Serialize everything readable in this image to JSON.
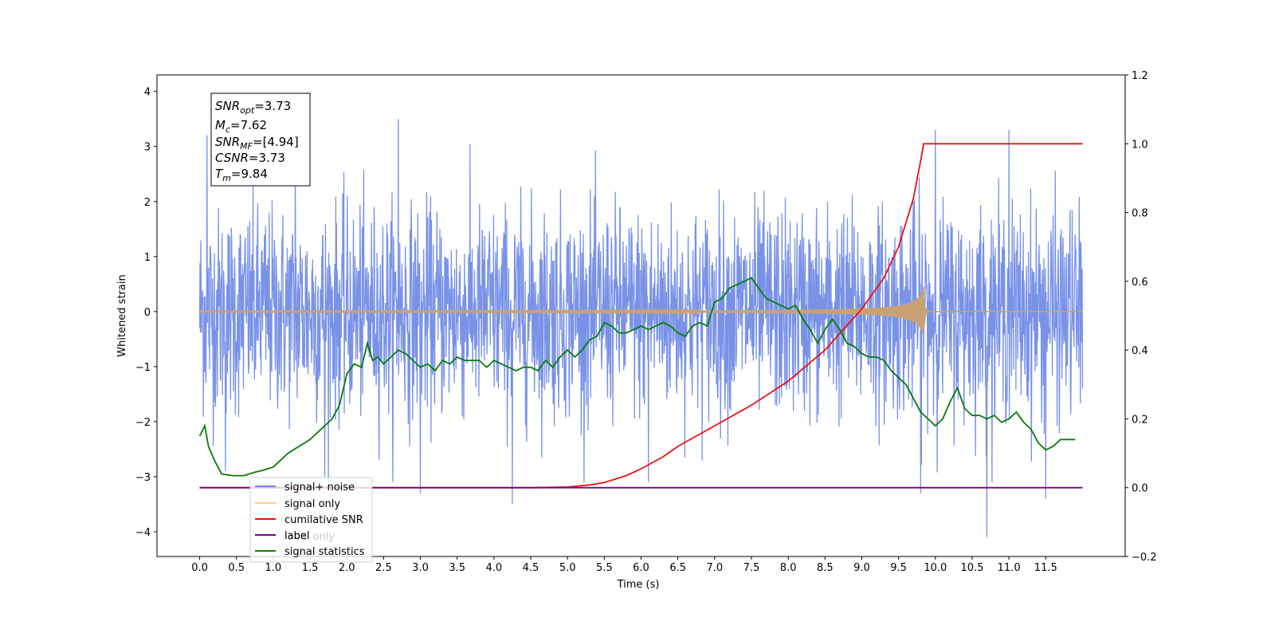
{
  "figure": {
    "info_box": {
      "lines": [
        {
          "name": "SNR",
          "sub": "opt",
          "value": "=3.73"
        },
        {
          "name": "M",
          "sub": "c",
          "value": "=7.62"
        },
        {
          "name": "SNR",
          "sub": "MF",
          "value": "=[4.94]"
        },
        {
          "name": "CSNR",
          "sub": "",
          "value": "=3.73"
        },
        {
          "name": "T",
          "sub": "m",
          "value": "=9.84"
        }
      ]
    }
  },
  "chart_data": {
    "type": "line",
    "title": "",
    "xlabel": "Time (s)",
    "ylabel": "Whitened strain",
    "y2label": "",
    "xlim": [
      -0.58,
      12.58
    ],
    "ylim": [
      -4.45,
      4.3
    ],
    "y2lim": [
      -0.2,
      1.2
    ],
    "x_ticks": [
      "0.0",
      "0.5",
      "1.0",
      "1.5",
      "2.0",
      "2.5",
      "3.0",
      "3.5",
      "4.0",
      "4.5",
      "5.0",
      "5.5",
      "6.0",
      "6.5",
      "7.0",
      "7.5",
      "8.0",
      "8.5",
      "9.0",
      "9.5",
      "10.0",
      "10.5",
      "11.0",
      "11.5"
    ],
    "y_ticks": [
      "−4",
      "−3",
      "−2",
      "−1",
      "0",
      "1",
      "2",
      "3",
      "4"
    ],
    "y2_ticks": [
      "−0.2",
      "0.0",
      "0.2",
      "0.4",
      "0.6",
      "0.8",
      "1.0",
      "1.2"
    ],
    "grid": false,
    "legend_position": "lower-left",
    "legend": [
      "signal+ noise",
      "signal only",
      "cumilative SNR",
      "label",
      "label only",
      "signal statistics"
    ],
    "colors": {
      "signal_noise": "#6a86e6",
      "signal_only": "#c8a276",
      "legend_signal_only": "#ffcc80",
      "cumulative_snr": "#ee1111",
      "label": "#770077",
      "signal_statistics": "#0a7a0a"
    },
    "series": [
      {
        "name": "signal+ noise",
        "axis": "left",
        "style": "dense noise trace",
        "x_range": [
          0,
          12
        ],
        "typical_band": [
          -1.5,
          1.5
        ],
        "peaks": [
          {
            "x": 0.1,
            "y": 3.2
          },
          {
            "x": 0.35,
            "y": -2.9
          },
          {
            "x": 1.3,
            "y": 3.3
          },
          {
            "x": 1.7,
            "y": -3.0
          },
          {
            "x": 2.7,
            "y": 3.5
          },
          {
            "x": 3.0,
            "y": -3.3
          },
          {
            "x": 4.25,
            "y": -3.5
          },
          {
            "x": 6.1,
            "y": -3.1
          },
          {
            "x": 9.8,
            "y": -3.3
          },
          {
            "x": 10.0,
            "y": 3.3
          },
          {
            "x": 10.7,
            "y": -4.1
          },
          {
            "x": 11.0,
            "y": 3.3
          },
          {
            "x": 11.5,
            "y": -3.4
          }
        ]
      },
      {
        "name": "signal only",
        "axis": "left",
        "style": "chirp",
        "x_range": [
          0,
          12
        ],
        "merger_time": 9.84,
        "peak_amplitude": 0.45
      },
      {
        "name": "cumilative SNR",
        "axis": "right",
        "x": [
          0,
          4.0,
          4.5,
          5.0,
          5.3,
          5.5,
          5.8,
          6.0,
          6.3,
          6.5,
          7.0,
          7.5,
          8.0,
          8.5,
          9.0,
          9.3,
          9.5,
          9.7,
          9.8,
          9.84,
          12.0
        ],
        "y": [
          0,
          0,
          0,
          0.002,
          0.008,
          0.015,
          0.035,
          0.055,
          0.09,
          0.12,
          0.18,
          0.24,
          0.31,
          0.4,
          0.52,
          0.61,
          0.7,
          0.84,
          0.95,
          1.0,
          1.0
        ]
      },
      {
        "name": "label",
        "axis": "right",
        "x": [
          0,
          12
        ],
        "y": [
          0,
          0
        ]
      },
      {
        "name": "signal statistics",
        "axis": "right",
        "x": [
          0.0,
          0.07,
          0.12,
          0.2,
          0.3,
          0.45,
          0.6,
          0.75,
          0.85,
          1.0,
          1.1,
          1.2,
          1.35,
          1.5,
          1.6,
          1.7,
          1.8,
          1.9,
          2.0,
          2.1,
          2.2,
          2.28,
          2.35,
          2.42,
          2.5,
          2.6,
          2.7,
          2.8,
          2.9,
          3.0,
          3.1,
          3.2,
          3.3,
          3.4,
          3.5,
          3.6,
          3.7,
          3.8,
          3.9,
          4.0,
          4.1,
          4.2,
          4.3,
          4.4,
          4.5,
          4.6,
          4.7,
          4.8,
          4.9,
          5.0,
          5.1,
          5.2,
          5.3,
          5.4,
          5.5,
          5.6,
          5.7,
          5.8,
          5.9,
          6.0,
          6.1,
          6.2,
          6.3,
          6.4,
          6.5,
          6.6,
          6.7,
          6.8,
          6.9,
          7.0,
          7.1,
          7.2,
          7.3,
          7.4,
          7.5,
          7.6,
          7.7,
          7.8,
          7.9,
          8.0,
          8.1,
          8.2,
          8.3,
          8.4,
          8.5,
          8.6,
          8.7,
          8.8,
          8.9,
          9.0,
          9.1,
          9.2,
          9.3,
          9.4,
          9.5,
          9.6,
          9.7,
          9.8,
          9.9,
          10.0,
          10.1,
          10.2,
          10.3,
          10.4,
          10.5,
          10.6,
          10.7,
          10.8,
          10.9,
          11.0,
          11.1,
          11.2,
          11.3,
          11.4,
          11.5,
          11.6,
          11.7,
          11.8,
          11.9
        ],
        "y": [
          0.15,
          0.18,
          0.12,
          0.08,
          0.04,
          0.035,
          0.035,
          0.045,
          0.05,
          0.06,
          0.08,
          0.1,
          0.12,
          0.14,
          0.16,
          0.18,
          0.2,
          0.24,
          0.33,
          0.36,
          0.35,
          0.42,
          0.37,
          0.38,
          0.36,
          0.38,
          0.4,
          0.39,
          0.37,
          0.35,
          0.36,
          0.34,
          0.37,
          0.36,
          0.38,
          0.37,
          0.37,
          0.37,
          0.35,
          0.37,
          0.36,
          0.35,
          0.34,
          0.35,
          0.35,
          0.34,
          0.37,
          0.35,
          0.38,
          0.4,
          0.38,
          0.4,
          0.43,
          0.44,
          0.48,
          0.47,
          0.45,
          0.45,
          0.46,
          0.47,
          0.46,
          0.47,
          0.48,
          0.47,
          0.45,
          0.44,
          0.47,
          0.48,
          0.47,
          0.54,
          0.55,
          0.58,
          0.59,
          0.6,
          0.61,
          0.58,
          0.55,
          0.54,
          0.53,
          0.52,
          0.53,
          0.49,
          0.46,
          0.42,
          0.46,
          0.49,
          0.46,
          0.42,
          0.41,
          0.39,
          0.38,
          0.38,
          0.37,
          0.34,
          0.32,
          0.3,
          0.26,
          0.22,
          0.2,
          0.18,
          0.2,
          0.25,
          0.29,
          0.23,
          0.21,
          0.21,
          0.2,
          0.21,
          0.19,
          0.2,
          0.22,
          0.19,
          0.17,
          0.13,
          0.11,
          0.12,
          0.14,
          0.14,
          0.14
        ]
      }
    ]
  }
}
